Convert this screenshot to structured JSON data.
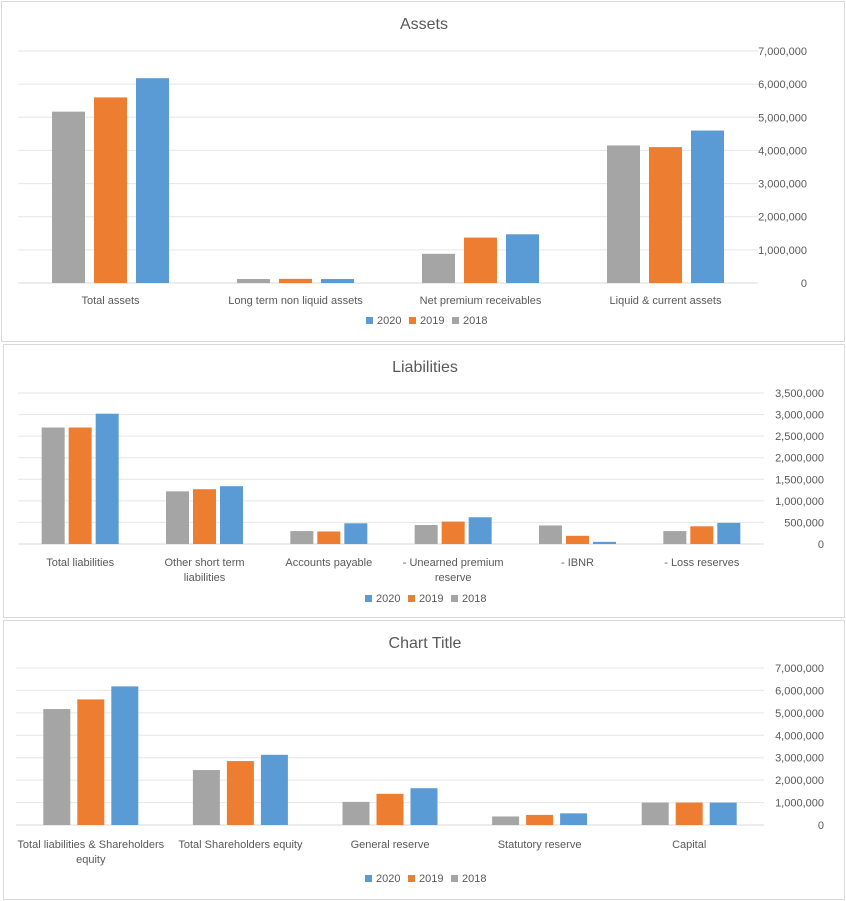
{
  "colors": {
    "2020": "#5b9bd5",
    "2019": "#ed7d31",
    "2018": "#a5a5a5"
  },
  "chart_data": [
    {
      "type": "bar",
      "title": "Assets",
      "categories": [
        [
          "Total assets"
        ],
        [
          "Long term non liquid assets"
        ],
        [
          "Net premium receivables"
        ],
        [
          "Liquid & current assets"
        ]
      ],
      "series": [
        {
          "name": "2018",
          "values": [
            5170000,
            120000,
            880000,
            4150000
          ]
        },
        {
          "name": "2019",
          "values": [
            5600000,
            125000,
            1370000,
            4100000
          ]
        },
        {
          "name": "2020",
          "values": [
            6180000,
            120000,
            1470000,
            4600000
          ]
        }
      ],
      "legend": [
        "2020",
        "2019",
        "2018"
      ],
      "legend_position": "bottom",
      "ylim": [
        0,
        7000000
      ],
      "yticks": [
        0,
        1000000,
        2000000,
        3000000,
        4000000,
        5000000,
        6000000,
        7000000
      ],
      "ytick_labels": [
        "0",
        "1,000,000",
        "2,000,000",
        "3,000,000",
        "4,000,000",
        "5,000,000",
        "6,000,000",
        "7,000,000"
      ],
      "y_axis_side": "right",
      "grid": true
    },
    {
      "type": "bar",
      "title": "Liabilities",
      "categories": [
        [
          "Total liabilities"
        ],
        [
          "Other short term",
          "liabilities"
        ],
        [
          "Accounts payable"
        ],
        [
          "- Unearned premium",
          "reserve"
        ],
        [
          "- IBNR"
        ],
        [
          "- Loss reserves"
        ]
      ],
      "series": [
        {
          "name": "2018",
          "values": [
            2700000,
            1220000,
            300000,
            440000,
            430000,
            300000
          ]
        },
        {
          "name": "2019",
          "values": [
            2700000,
            1270000,
            290000,
            520000,
            190000,
            410000
          ]
        },
        {
          "name": "2020",
          "values": [
            3020000,
            1340000,
            480000,
            620000,
            50000,
            490000
          ]
        }
      ],
      "legend": [
        "2020",
        "2019",
        "2018"
      ],
      "legend_position": "bottom",
      "ylim": [
        0,
        3500000
      ],
      "yticks": [
        0,
        500000,
        1000000,
        1500000,
        2000000,
        2500000,
        3000000,
        3500000
      ],
      "ytick_labels": [
        "0",
        "500,000",
        "1,000,000",
        "1,500,000",
        "2,000,000",
        "2,500,000",
        "3,000,000",
        "3,500,000"
      ],
      "y_axis_side": "right",
      "grid": true
    },
    {
      "type": "bar",
      "title": "Chart Title",
      "categories": [
        [
          "Total liabilities & Shareholders",
          "equity"
        ],
        [
          "Total Shareholders equity"
        ],
        [
          "General reserve"
        ],
        [
          "Statutory reserve"
        ],
        [
          "Capital"
        ]
      ],
      "series": [
        {
          "name": "2018",
          "values": [
            5170000,
            2450000,
            1030000,
            380000,
            1000000
          ]
        },
        {
          "name": "2019",
          "values": [
            5600000,
            2850000,
            1390000,
            450000,
            1000000
          ]
        },
        {
          "name": "2020",
          "values": [
            6180000,
            3130000,
            1640000,
            520000,
            1000000
          ]
        }
      ],
      "legend": [
        "2020",
        "2019",
        "2018"
      ],
      "legend_position": "bottom",
      "ylim": [
        0,
        7000000
      ],
      "yticks": [
        0,
        1000000,
        2000000,
        3000000,
        4000000,
        5000000,
        6000000,
        7000000
      ],
      "ytick_labels": [
        "0",
        "1,000,000",
        "2,000,000",
        "3,000,000",
        "4,000,000",
        "5,000,000",
        "6,000,000",
        "7,000,000"
      ],
      "y_axis_side": "right",
      "grid": true
    }
  ]
}
